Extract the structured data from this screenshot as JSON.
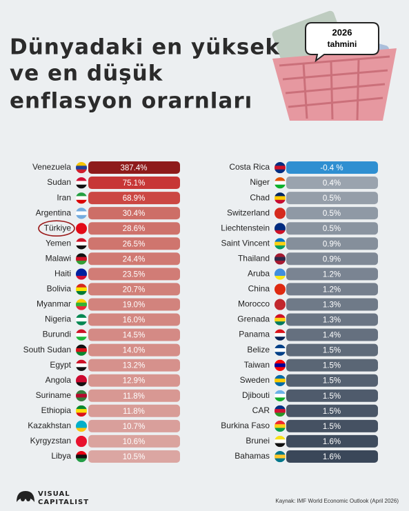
{
  "title": {
    "lines": [
      "Dünyadaki en yüksek",
      "ve en düşük",
      "enflasyon orarnları"
    ]
  },
  "badge": {
    "year": "2026",
    "label": "tahmini"
  },
  "highest": [
    {
      "country": "Venezuela",
      "value": "387.4%"
    },
    {
      "country": "Sudan",
      "value": "75.1%"
    },
    {
      "country": "Iran",
      "value": "68.9%"
    },
    {
      "country": "Argentina",
      "value": "30.4%"
    },
    {
      "country": "Türkiye",
      "value": "28.6%"
    },
    {
      "country": "Yemen",
      "value": "26.5%"
    },
    {
      "country": "Malawi",
      "value": "24.4%"
    },
    {
      "country": "Haiti",
      "value": "23.5%"
    },
    {
      "country": "Bolivia",
      "value": "20.7%"
    },
    {
      "country": "Myanmar",
      "value": "19.0%"
    },
    {
      "country": "Nigeria",
      "value": "16.0%"
    },
    {
      "country": "Burundi",
      "value": "14.5%"
    },
    {
      "country": "South Sudan",
      "value": "14.0%"
    },
    {
      "country": "Egypt",
      "value": "13.2%"
    },
    {
      "country": "Angola",
      "value": "12.9%"
    },
    {
      "country": "Suriname",
      "value": "11.8%"
    },
    {
      "country": "Ethiopia",
      "value": "11.8%"
    },
    {
      "country": "Kazakhstan",
      "value": "10.7%"
    },
    {
      "country": "Kyrgyzstan",
      "value": "10.6%"
    },
    {
      "country": "Libya",
      "value": "10.5%"
    }
  ],
  "lowest": [
    {
      "country": "Costa Rica",
      "value": "-0.4 %"
    },
    {
      "country": "Niger",
      "value": "0.4%"
    },
    {
      "country": "Chad",
      "value": "0.5%"
    },
    {
      "country": "Switzerland",
      "value": "0.5%"
    },
    {
      "country": "Liechtenstein",
      "value": "0.5%"
    },
    {
      "country": "Saint Vincent",
      "value": "0.9%"
    },
    {
      "country": "Thailand",
      "value": "0.9%"
    },
    {
      "country": "Aruba",
      "value": "1.2%"
    },
    {
      "country": "China",
      "value": "1.2%"
    },
    {
      "country": "Morocco",
      "value": "1.3%"
    },
    {
      "country": "Grenada",
      "value": "1.3%"
    },
    {
      "country": "Panama",
      "value": "1.4%"
    },
    {
      "country": "Belize",
      "value": "1.5%"
    },
    {
      "country": "Taiwan",
      "value": "1.5%"
    },
    {
      "country": "Sweden",
      "value": "1.5%"
    },
    {
      "country": "Djibouti",
      "value": "1.5%"
    },
    {
      "country": "CAR",
      "value": "1.5%"
    },
    {
      "country": "Burkina Faso",
      "value": "1.5%"
    },
    {
      "country": "Brunei",
      "value": "1.6%"
    },
    {
      "country": "Bahamas",
      "value": "1.6%"
    }
  ],
  "source": "Kaynak: IMF World Economic Outlook (April 2026)",
  "brand": {
    "line1": "VISUAL",
    "line2": "CAPITALIST"
  }
}
